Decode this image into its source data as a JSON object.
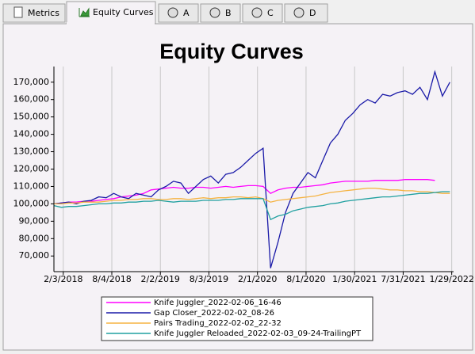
{
  "tabs": [
    "Metrics",
    "Equity Curves",
    "A",
    "B",
    "C",
    "D"
  ],
  "chart_data": {
    "type": "line",
    "title": "Equity Curves",
    "x": [
      "2017-12-30",
      "2018-01-27",
      "2018-02-24",
      "2018-03-24",
      "2018-04-21",
      "2018-05-19",
      "2018-06-16",
      "2018-07-14",
      "2018-08-11",
      "2018-09-08",
      "2018-10-06",
      "2018-11-03",
      "2018-12-01",
      "2018-12-29",
      "2019-01-26",
      "2019-02-23",
      "2019-03-23",
      "2019-04-20",
      "2019-05-18",
      "2019-06-15",
      "2019-07-13",
      "2019-08-10",
      "2019-09-07",
      "2019-10-05",
      "2019-11-02",
      "2019-11-30",
      "2019-12-28",
      "2020-01-25",
      "2020-02-22",
      "2020-03-21",
      "2020-04-18",
      "2020-05-16",
      "2020-06-13",
      "2020-07-11",
      "2020-08-08",
      "2020-09-05",
      "2020-10-03",
      "2020-10-31",
      "2020-11-28",
      "2020-12-26",
      "2021-01-23",
      "2021-02-20",
      "2021-03-20",
      "2021-04-17",
      "2021-05-15",
      "2021-06-12",
      "2021-07-10",
      "2021-08-07",
      "2021-09-04",
      "2021-10-02",
      "2021-10-30",
      "2021-11-27",
      "2021-12-25",
      "2022-01-22"
    ],
    "series": [
      {
        "name": "Knife Juggler_2022-02-06_16-46",
        "color": "#ff00ff",
        "values": [
          100000,
          100500,
          101000,
          101000,
          101500,
          101500,
          102000,
          102500,
          103000,
          104000,
          104500,
          105000,
          106000,
          108000,
          108500,
          109000,
          109500,
          109000,
          109000,
          109500,
          109500,
          109000,
          109500,
          110000,
          109500,
          110000,
          110500,
          110500,
          110000,
          106000,
          108000,
          109000,
          109500,
          109500,
          110000,
          110500,
          111000,
          112000,
          112500,
          113000,
          113000,
          113000,
          113000,
          113500,
          113500,
          113500,
          113500,
          114000,
          114000,
          114000,
          114000,
          113500,
          null,
          null
        ]
      },
      {
        "name": "Gap Closer_2022-02-02_08-26",
        "color": "#1a1aa8",
        "values": [
          100000,
          100500,
          101000,
          100000,
          101500,
          102000,
          104000,
          103500,
          106000,
          104000,
          103000,
          106000,
          105000,
          104000,
          108000,
          110000,
          113000,
          112000,
          106000,
          110000,
          114000,
          116000,
          112000,
          117000,
          118000,
          121000,
          125000,
          129000,
          132000,
          63000,
          78000,
          95000,
          106000,
          112000,
          118000,
          115000,
          125000,
          135000,
          140000,
          148000,
          152000,
          157000,
          160000,
          158000,
          163000,
          162000,
          164000,
          165000,
          163000,
          167000,
          160000,
          176000,
          162000,
          170000
        ]
      },
      {
        "name": "Pairs Trading_2022-02-02_22-32",
        "color": "#f5b342",
        "values": [
          100000,
          100000,
          100500,
          100500,
          101000,
          101000,
          101000,
          101500,
          102000,
          102000,
          102500,
          102500,
          103000,
          103000,
          102500,
          102500,
          103000,
          103000,
          102500,
          103000,
          103500,
          103000,
          103500,
          103500,
          104000,
          104000,
          103500,
          104000,
          103000,
          101000,
          102000,
          102500,
          103000,
          103500,
          104000,
          104500,
          105500,
          106500,
          107000,
          107500,
          108000,
          108500,
          109000,
          109000,
          108500,
          108000,
          108000,
          107500,
          107500,
          107000,
          107000,
          106500,
          106000,
          106000
        ]
      },
      {
        "name": "Knife Juggler Reloaded_2022-02-03_09-24-TrailingPT",
        "color": "#20a0a0",
        "values": [
          99000,
          98000,
          98500,
          98500,
          99000,
          99500,
          100000,
          100000,
          100500,
          100500,
          101000,
          101000,
          101500,
          101500,
          102000,
          101500,
          101000,
          101500,
          101500,
          101500,
          102000,
          102000,
          102000,
          102500,
          102500,
          103000,
          103000,
          103000,
          103000,
          91000,
          93000,
          94000,
          96000,
          97000,
          98000,
          98500,
          99000,
          100000,
          100500,
          101500,
          102000,
          102500,
          103000,
          103500,
          104000,
          104000,
          104500,
          105000,
          105500,
          106000,
          106000,
          106500,
          107000,
          107000
        ]
      }
    ],
    "xlim": [
      "2017-12-30",
      "2022-02-05"
    ],
    "xticks": [
      {
        "value": "2018-02-03",
        "label": "2/3/2018"
      },
      {
        "value": "2018-08-04",
        "label": "8/4/2018"
      },
      {
        "value": "2019-02-02",
        "label": "2/2/2019"
      },
      {
        "value": "2019-08-03",
        "label": "8/3/2019"
      },
      {
        "value": "2020-02-01",
        "label": "2/1/2020"
      },
      {
        "value": "2020-08-01",
        "label": "8/1/2020"
      },
      {
        "value": "2021-01-30",
        "label": "1/30/2021"
      },
      {
        "value": "2021-07-31",
        "label": "7/31/2021"
      },
      {
        "value": "2022-01-29",
        "label": "1/29/2022"
      }
    ],
    "ylim": [
      61000,
      179000
    ],
    "yticks": [
      {
        "value": 70000,
        "label": "70,000"
      },
      {
        "value": 80000,
        "label": "80,000"
      },
      {
        "value": 90000,
        "label": "90,000"
      },
      {
        "value": 100000,
        "label": "100,000"
      },
      {
        "value": 110000,
        "label": "110,000"
      },
      {
        "value": 120000,
        "label": "120,000"
      },
      {
        "value": 130000,
        "label": "130,000"
      },
      {
        "value": 140000,
        "label": "140,000"
      },
      {
        "value": 150000,
        "label": "150,000"
      },
      {
        "value": 160000,
        "label": "160,000"
      },
      {
        "value": 170000,
        "label": "170,000"
      }
    ],
    "grid": "x",
    "legend": "bottom"
  }
}
